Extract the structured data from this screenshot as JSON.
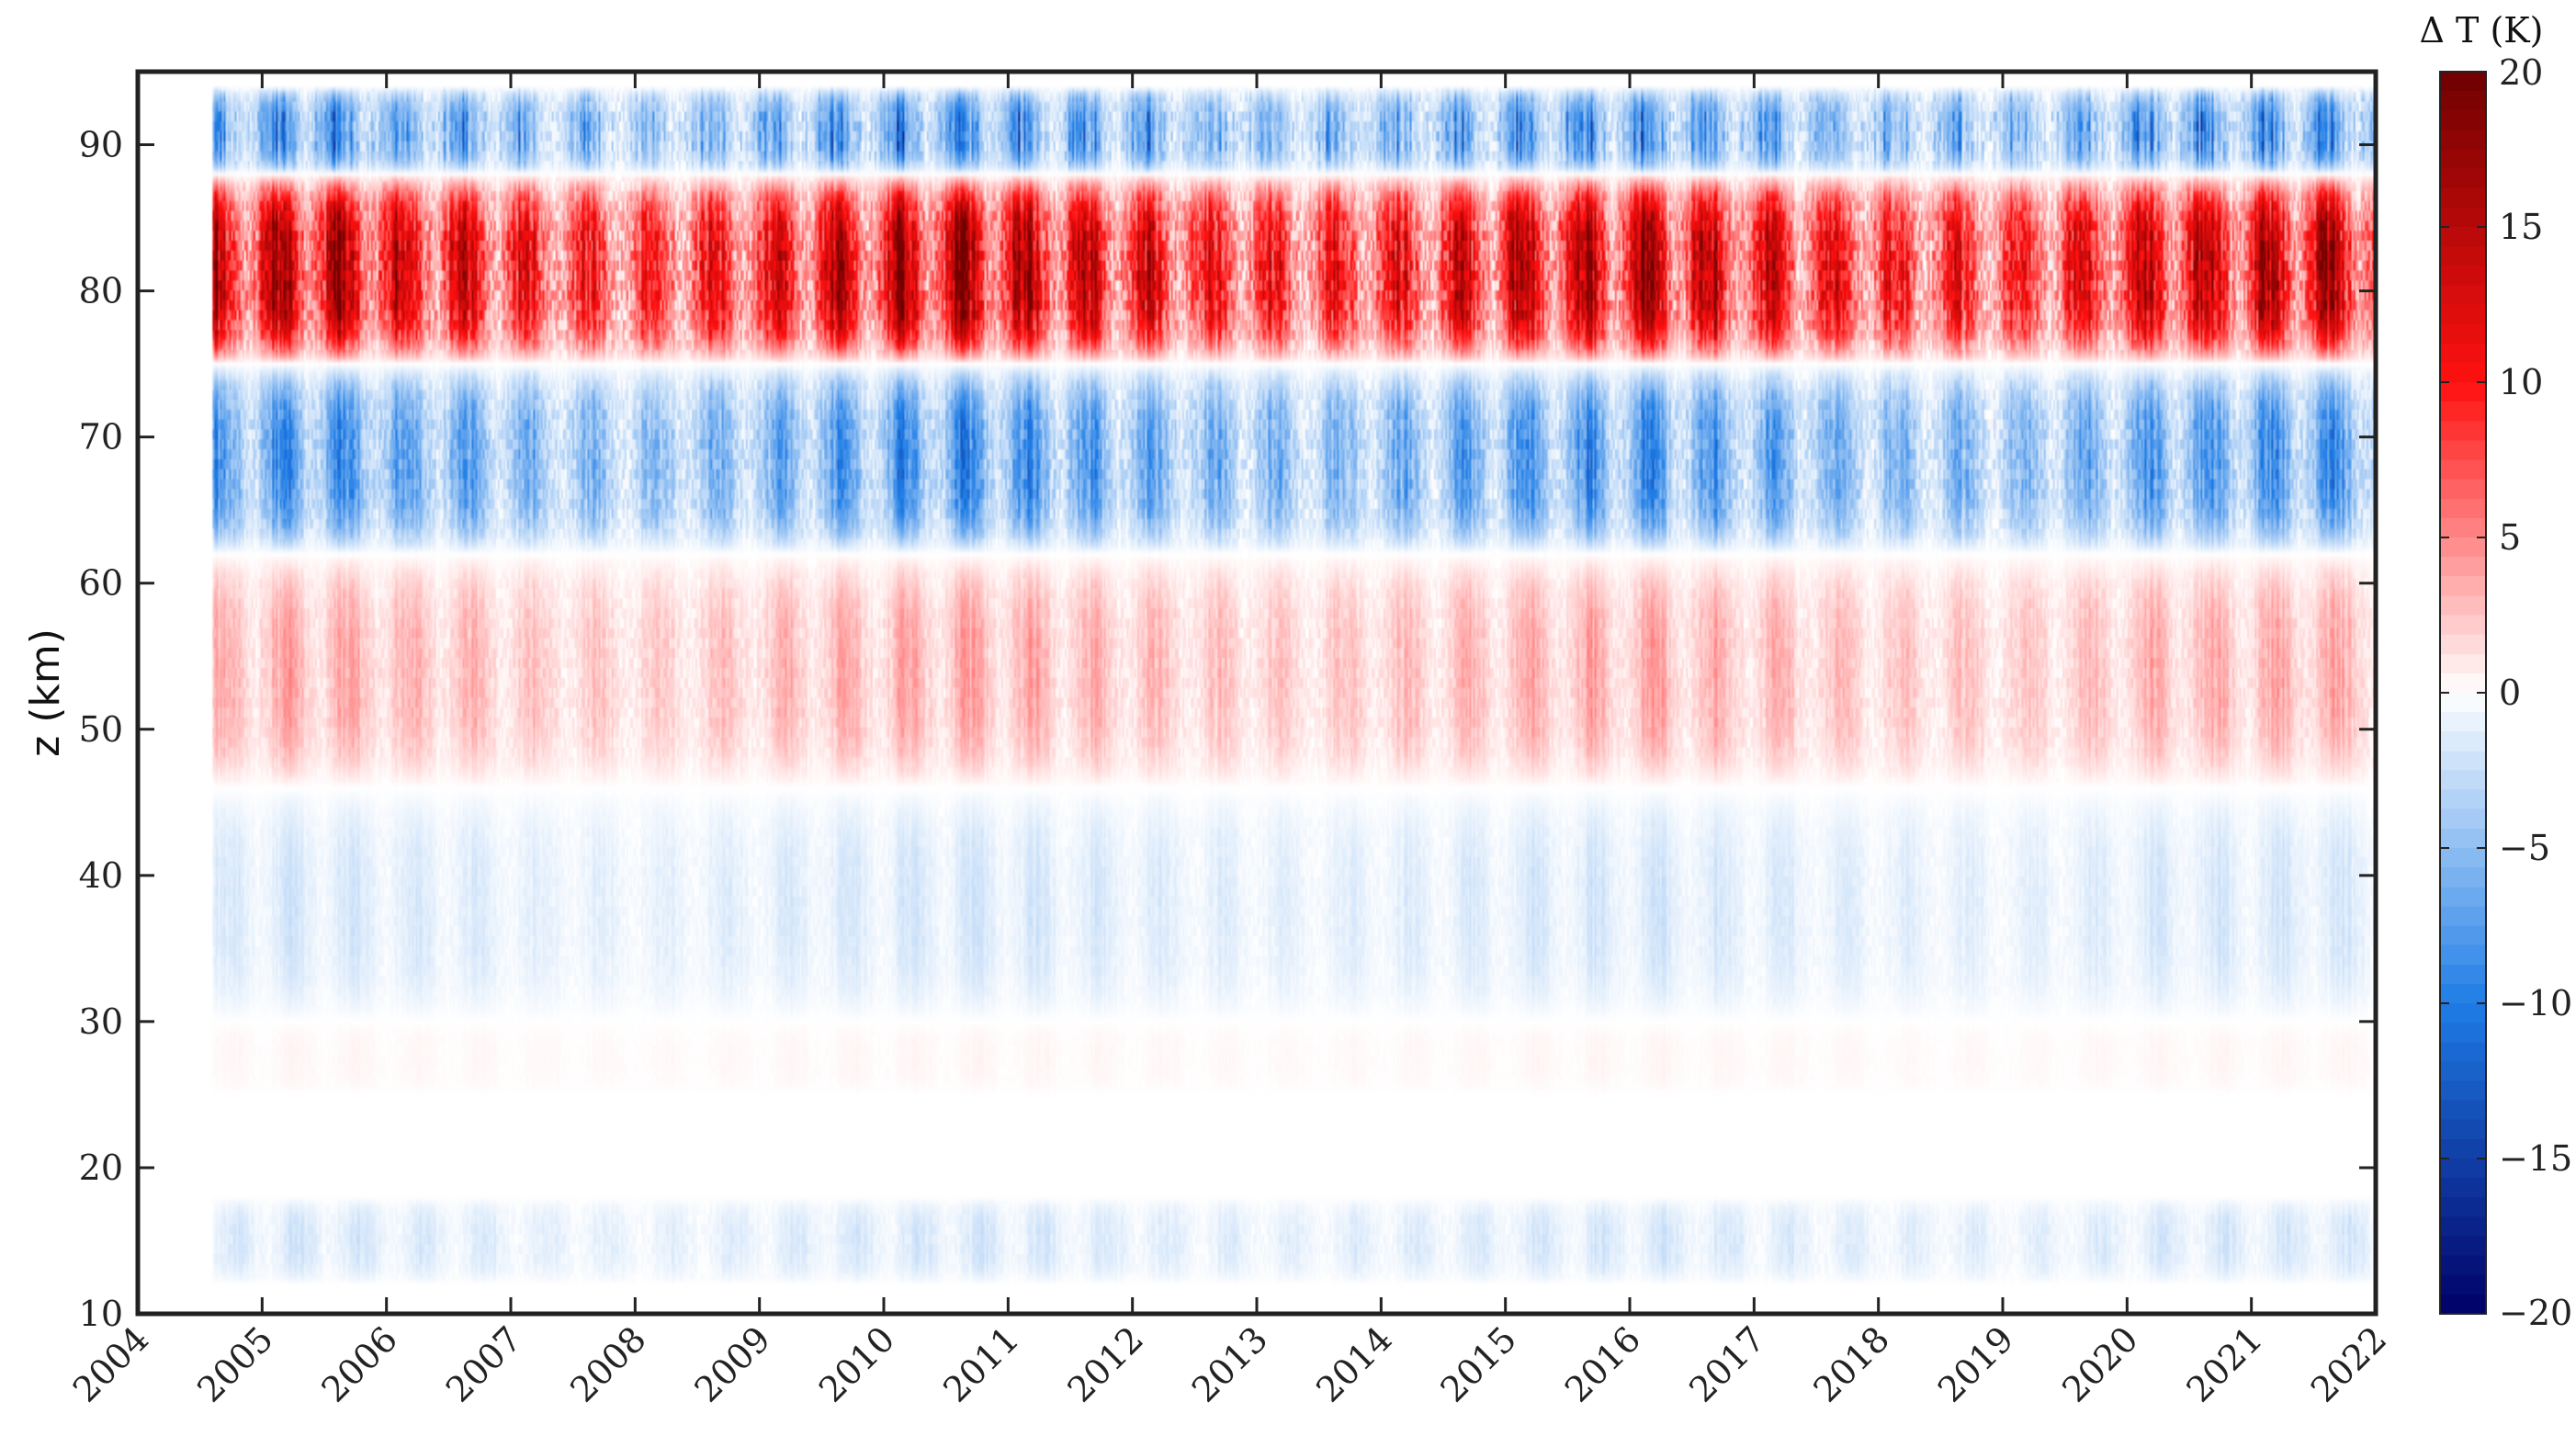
{
  "chart_data": {
    "type": "heatmap",
    "title": "",
    "xlabel": "",
    "ylabel": "z (km)",
    "x_ticks": [
      "2004",
      "2005",
      "2006",
      "2007",
      "2008",
      "2009",
      "2010",
      "2011",
      "2012",
      "2013",
      "2014",
      "2015",
      "2016",
      "2017",
      "2018",
      "2019",
      "2020",
      "2021",
      "2022"
    ],
    "xlim": [
      2004,
      2022
    ],
    "y_ticks": [
      10,
      20,
      30,
      40,
      50,
      60,
      70,
      80,
      90
    ],
    "ylim": [
      10,
      95
    ],
    "data_time_range": [
      2004.6,
      2022.0
    ],
    "data_altitude_range_km": [
      12,
      94
    ],
    "colorbar": {
      "title": "Δ T (K)",
      "range": [
        -20,
        20
      ],
      "ticks": [
        20,
        15,
        10,
        5,
        0,
        -5,
        -10,
        -15,
        -20
      ],
      "tick_labels": [
        "20",
        "15",
        "10",
        "5",
        "0",
        "−5",
        "−10",
        "−15",
        "−20"
      ],
      "colormap": "blue-white-red",
      "colors": {
        "min": "#000066",
        "neg": "#1f7de6",
        "zero": "#ffffff",
        "pos": "#ff1010",
        "max": "#700000"
      }
    },
    "layers_K": [
      {
        "z_km": [
          88,
          94
        ],
        "mean_dT": -6
      },
      {
        "z_km": [
          75,
          88
        ],
        "mean_dT": 13
      },
      {
        "z_km": [
          62,
          75
        ],
        "mean_dT": -7
      },
      {
        "z_km": [
          46,
          62
        ],
        "mean_dT": 3
      },
      {
        "z_km": [
          30,
          46
        ],
        "mean_dT": -1.5
      },
      {
        "z_km": [
          25,
          30
        ],
        "mean_dT": 0.3
      },
      {
        "z_km": [
          18,
          25
        ],
        "mean_dT": 0
      },
      {
        "z_km": [
          12,
          18
        ],
        "mean_dT": -1.5
      }
    ],
    "grid": false,
    "legend": "colorbar-right"
  }
}
